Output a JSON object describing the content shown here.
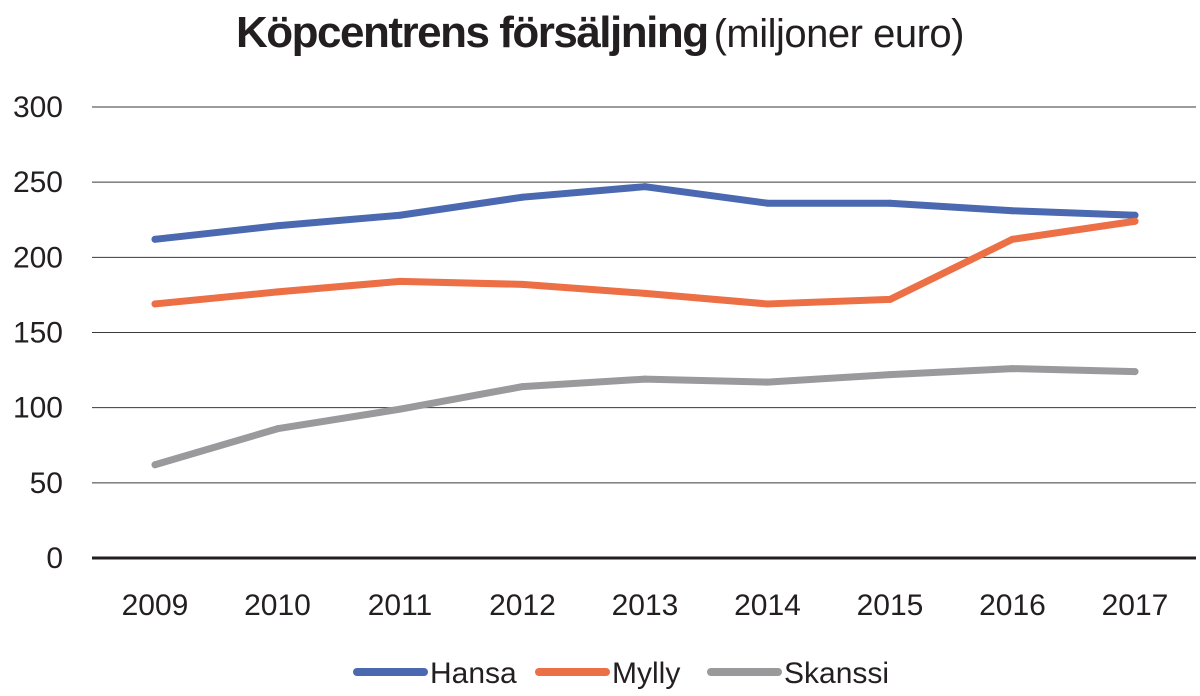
{
  "chart_data": {
    "type": "line",
    "title": "Köpcentrens försäljning",
    "subtitle": "(miljoner euro)",
    "categories": [
      "2009",
      "2010",
      "2011",
      "2012",
      "2013",
      "2014",
      "2015",
      "2016",
      "2017"
    ],
    "ylim": [
      0,
      300
    ],
    "yticks": [
      0,
      50,
      100,
      150,
      200,
      250,
      300
    ],
    "grid": true,
    "legend": "bottom-center",
    "series": [
      {
        "name": "Hansa",
        "color": "#4a69b0",
        "values": [
          212,
          221,
          228,
          240,
          247,
          236,
          236,
          231,
          228
        ]
      },
      {
        "name": "Mylly",
        "color": "#ec6f45",
        "values": [
          169,
          177,
          184,
          182,
          176,
          169,
          172,
          212,
          224
        ]
      },
      {
        "name": "Skanssi",
        "color": "#9a9a9d",
        "values": [
          62,
          86,
          99,
          114,
          119,
          117,
          122,
          126,
          124
        ]
      }
    ]
  }
}
